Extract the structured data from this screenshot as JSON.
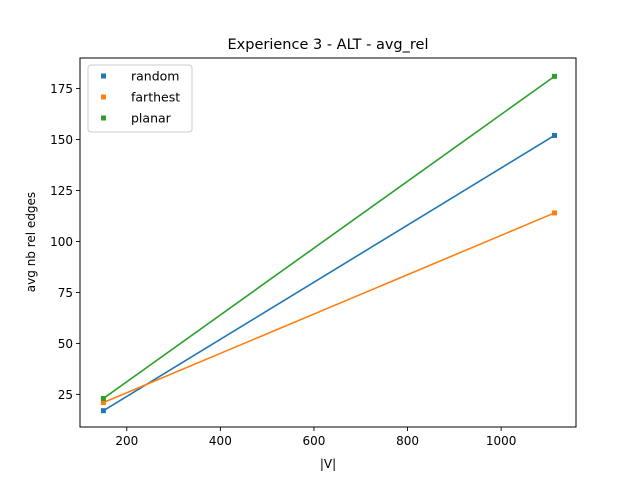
{
  "chart_data": {
    "type": "line",
    "title": "Experience 3 - ALT - avg_rel",
    "xlabel": "|V|",
    "ylabel": "avg nb rel edges",
    "xlim": [
      100,
      1160
    ],
    "ylim": [
      9,
      190
    ],
    "xticks": [
      200,
      400,
      600,
      800,
      1000
    ],
    "yticks": [
      25,
      50,
      75,
      100,
      125,
      150,
      175
    ],
    "grid": false,
    "legend_position": "top-left",
    "series": [
      {
        "name": "random",
        "color": "#1f77b4",
        "x": [
          150,
          1114
        ],
        "y": [
          17,
          152
        ]
      },
      {
        "name": "farthest",
        "color": "#ff7f0e",
        "x": [
          150,
          1114
        ],
        "y": [
          21,
          114
        ]
      },
      {
        "name": "planar",
        "color": "#2ca02c",
        "x": [
          150,
          1114
        ],
        "y": [
          23,
          181
        ]
      }
    ]
  }
}
